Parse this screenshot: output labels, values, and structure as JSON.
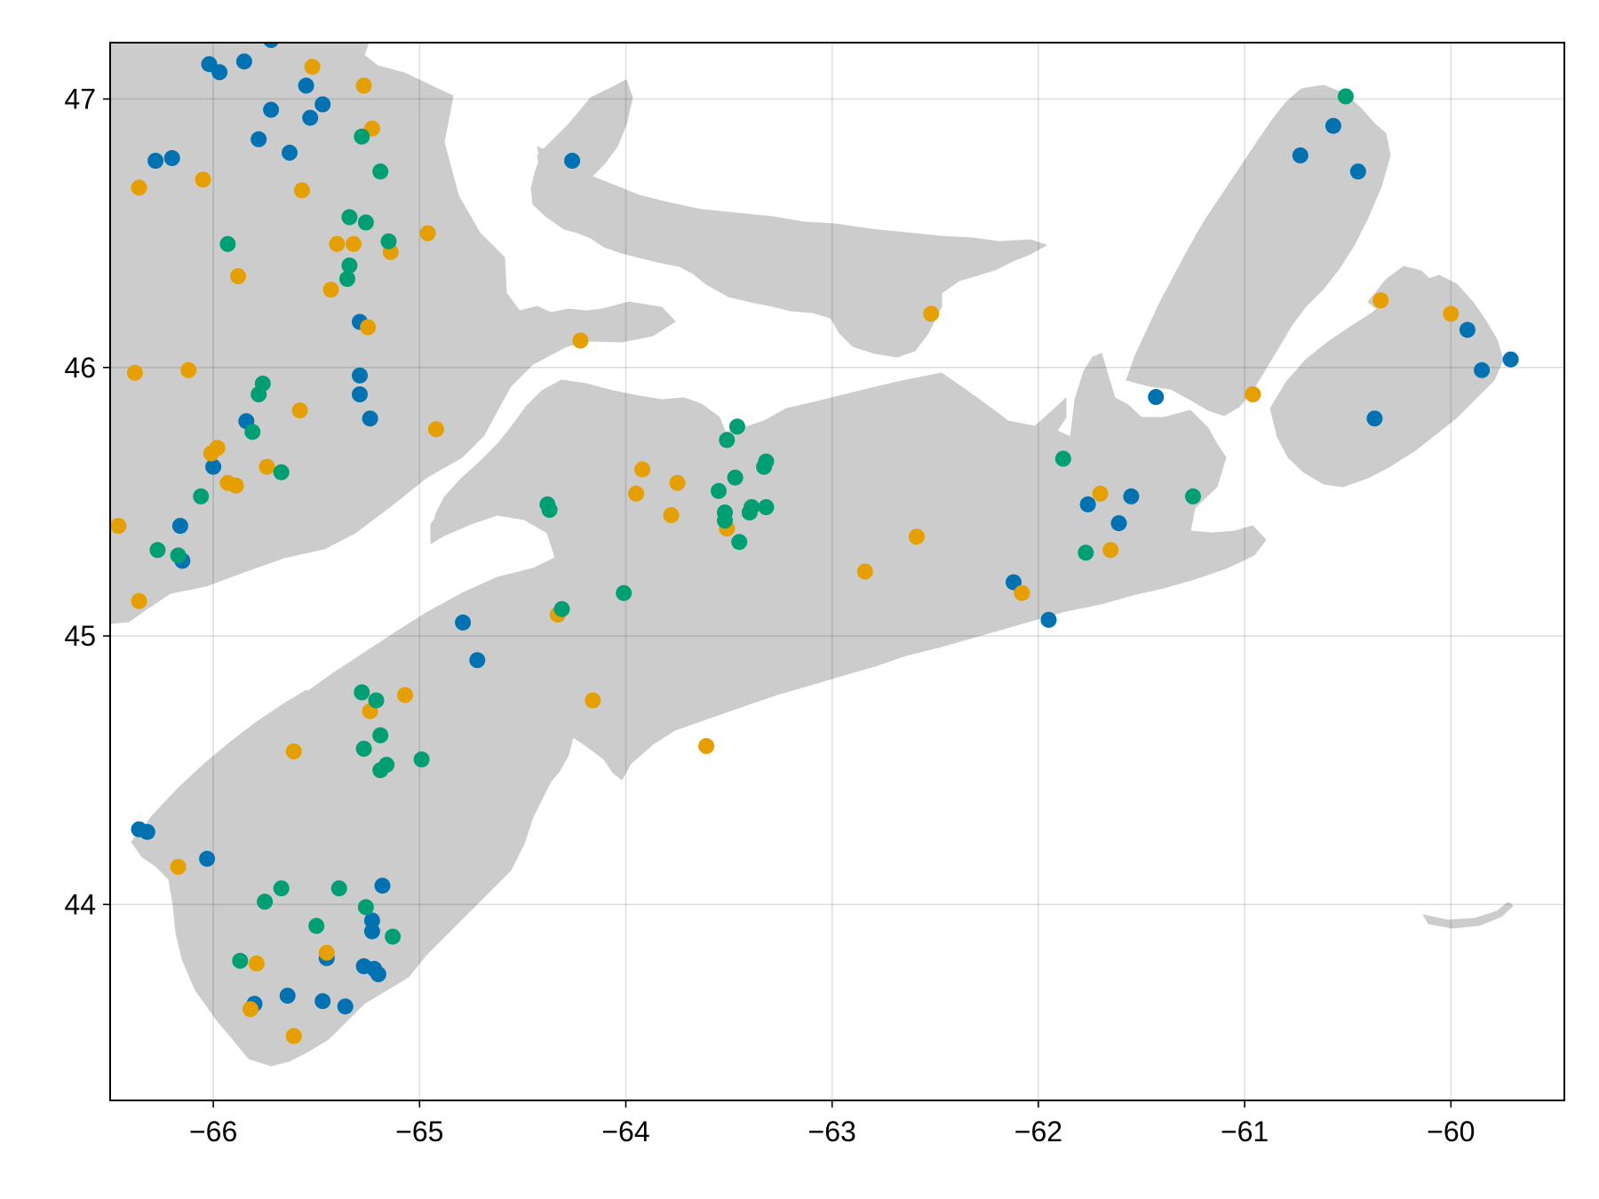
{
  "chart_data": {
    "type": "scatter",
    "title": "",
    "xlabel": "",
    "ylabel": "",
    "xlim": [
      -66.5,
      -59.45
    ],
    "ylim": [
      43.27,
      47.21
    ],
    "grid": true,
    "x_ticks": [
      -66,
      -65,
      -64,
      -63,
      -62,
      -61,
      -60
    ],
    "y_ticks": [
      44,
      45,
      46,
      47
    ],
    "x_tick_labels": [
      "−66",
      "−65",
      "−64",
      "−63",
      "−62",
      "−61",
      "−60"
    ],
    "y_tick_labels": [
      "44",
      "45",
      "46",
      "47"
    ],
    "basemap": {
      "fill": "#cccccc",
      "content": "Land masses of New Brunswick, Nova Scotia, Prince Edward Island and Cape Breton"
    },
    "series": [
      {
        "color": "#0072b2",
        "points": [
          [
            -66.02,
            47.13
          ],
          [
            -65.97,
            47.1
          ],
          [
            -65.85,
            47.14
          ],
          [
            -65.72,
            47.22
          ],
          [
            -65.72,
            46.96
          ],
          [
            -65.55,
            47.05
          ],
          [
            -65.47,
            46.98
          ],
          [
            -65.53,
            46.93
          ],
          [
            -65.78,
            46.85
          ],
          [
            -65.63,
            46.8
          ],
          [
            -66.28,
            46.77
          ],
          [
            -66.2,
            46.78
          ],
          [
            -64.26,
            46.77
          ],
          [
            -60.73,
            46.79
          ],
          [
            -60.57,
            46.9
          ],
          [
            -60.45,
            46.73
          ],
          [
            -65.29,
            46.17
          ],
          [
            -65.29,
            45.97
          ],
          [
            -65.29,
            45.9
          ],
          [
            -65.24,
            45.81
          ],
          [
            -65.84,
            45.8
          ],
          [
            -66.0,
            45.63
          ],
          [
            -66.16,
            45.41
          ],
          [
            -66.15,
            45.28
          ],
          [
            -61.43,
            45.89
          ],
          [
            -59.92,
            46.14
          ],
          [
            -59.85,
            45.99
          ],
          [
            -59.71,
            46.03
          ],
          [
            -60.37,
            45.81
          ],
          [
            -61.76,
            45.49
          ],
          [
            -61.55,
            45.52
          ],
          [
            -61.61,
            45.42
          ],
          [
            -62.12,
            45.2
          ],
          [
            -61.95,
            45.06
          ],
          [
            -64.79,
            45.05
          ],
          [
            -64.72,
            44.91
          ],
          [
            -66.36,
            44.28
          ],
          [
            -66.32,
            44.27
          ],
          [
            -66.03,
            44.17
          ],
          [
            -65.18,
            44.07
          ],
          [
            -65.23,
            43.94
          ],
          [
            -65.23,
            43.9
          ],
          [
            -65.45,
            43.8
          ],
          [
            -65.27,
            43.77
          ],
          [
            -65.22,
            43.76
          ],
          [
            -65.2,
            43.74
          ],
          [
            -65.8,
            43.63
          ],
          [
            -65.64,
            43.66
          ],
          [
            -65.47,
            43.64
          ],
          [
            -65.36,
            43.62
          ]
        ]
      },
      {
        "color": "#e69f00",
        "points": [
          [
            -65.52,
            47.12
          ],
          [
            -65.27,
            47.05
          ],
          [
            -65.23,
            46.89
          ],
          [
            -66.36,
            46.67
          ],
          [
            -66.05,
            46.7
          ],
          [
            -65.57,
            46.66
          ],
          [
            -64.96,
            46.5
          ],
          [
            -65.4,
            46.46
          ],
          [
            -65.32,
            46.46
          ],
          [
            -65.14,
            46.43
          ],
          [
            -65.88,
            46.34
          ],
          [
            -65.43,
            46.29
          ],
          [
            -65.25,
            46.15
          ],
          [
            -64.22,
            46.1
          ],
          [
            -62.52,
            46.2
          ],
          [
            -60.34,
            46.25
          ],
          [
            -60.0,
            46.2
          ],
          [
            -66.38,
            45.98
          ],
          [
            -66.12,
            45.99
          ],
          [
            -65.58,
            45.84
          ],
          [
            -64.92,
            45.77
          ],
          [
            -60.96,
            45.9
          ],
          [
            -65.98,
            45.7
          ],
          [
            -66.01,
            45.68
          ],
          [
            -65.93,
            45.57
          ],
          [
            -65.89,
            45.56
          ],
          [
            -65.74,
            45.63
          ],
          [
            -63.92,
            45.62
          ],
          [
            -63.75,
            45.57
          ],
          [
            -63.95,
            45.53
          ],
          [
            -63.78,
            45.45
          ],
          [
            -63.51,
            45.4
          ],
          [
            -61.7,
            45.53
          ],
          [
            -61.65,
            45.32
          ],
          [
            -62.59,
            45.37
          ],
          [
            -62.84,
            45.24
          ],
          [
            -62.08,
            45.16
          ],
          [
            -66.46,
            45.41
          ],
          [
            -66.36,
            45.13
          ],
          [
            -64.33,
            45.08
          ],
          [
            -65.07,
            44.78
          ],
          [
            -65.24,
            44.72
          ],
          [
            -64.16,
            44.76
          ],
          [
            -63.61,
            44.59
          ],
          [
            -65.61,
            44.57
          ],
          [
            -66.17,
            44.14
          ],
          [
            -65.45,
            43.82
          ],
          [
            -65.79,
            43.78
          ],
          [
            -65.82,
            43.61
          ],
          [
            -65.61,
            43.51
          ]
        ]
      },
      {
        "color": "#009e73",
        "points": [
          [
            -60.51,
            47.01
          ],
          [
            -65.28,
            46.86
          ],
          [
            -65.19,
            46.73
          ],
          [
            -65.34,
            46.56
          ],
          [
            -65.26,
            46.54
          ],
          [
            -65.15,
            46.47
          ],
          [
            -65.34,
            46.38
          ],
          [
            -65.35,
            46.33
          ],
          [
            -65.93,
            46.46
          ],
          [
            -65.76,
            45.94
          ],
          [
            -65.78,
            45.9
          ],
          [
            -65.81,
            45.76
          ],
          [
            -65.67,
            45.61
          ],
          [
            -66.06,
            45.52
          ],
          [
            -66.27,
            45.32
          ],
          [
            -66.17,
            45.3
          ],
          [
            -63.46,
            45.78
          ],
          [
            -63.51,
            45.73
          ],
          [
            -63.32,
            45.65
          ],
          [
            -63.33,
            45.63
          ],
          [
            -63.47,
            45.59
          ],
          [
            -63.55,
            45.54
          ],
          [
            -63.52,
            45.46
          ],
          [
            -63.52,
            45.43
          ],
          [
            -63.39,
            45.48
          ],
          [
            -63.4,
            45.46
          ],
          [
            -63.32,
            45.48
          ],
          [
            -63.45,
            45.35
          ],
          [
            -64.38,
            45.49
          ],
          [
            -64.37,
            45.47
          ],
          [
            -61.88,
            45.66
          ],
          [
            -61.25,
            45.52
          ],
          [
            -61.77,
            45.31
          ],
          [
            -64.31,
            45.1
          ],
          [
            -64.01,
            45.16
          ],
          [
            -65.28,
            44.79
          ],
          [
            -65.21,
            44.76
          ],
          [
            -65.19,
            44.63
          ],
          [
            -65.27,
            44.58
          ],
          [
            -64.99,
            44.54
          ],
          [
            -65.16,
            44.52
          ],
          [
            -65.19,
            44.5
          ],
          [
            -65.67,
            44.06
          ],
          [
            -65.75,
            44.01
          ],
          [
            -65.39,
            44.06
          ],
          [
            -65.5,
            43.92
          ],
          [
            -65.26,
            43.99
          ],
          [
            -65.13,
            43.88
          ],
          [
            -65.87,
            43.79
          ]
        ]
      }
    ]
  }
}
